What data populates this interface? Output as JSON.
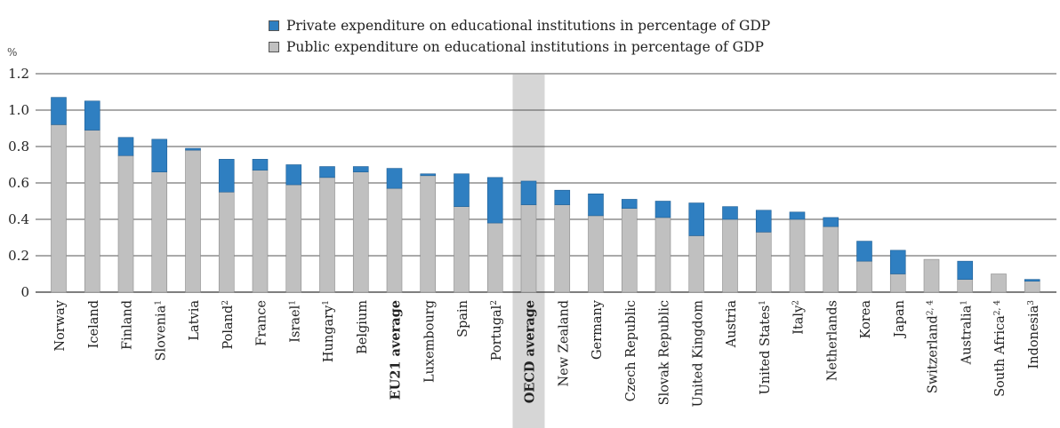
{
  "legend": {
    "private_label": "Private expenditure on educational institutions in percentage of GDP",
    "public_label": "Public expenditure on educational institutions in percentage of GDP"
  },
  "chart_data": {
    "type": "bar",
    "stacked": true,
    "ylabel": "%",
    "ylim": [
      0,
      1.2
    ],
    "yticks": [
      "0",
      "0.2",
      "0.4",
      "0.6",
      "0.8",
      "1.0",
      "1.2"
    ],
    "grid": true,
    "legend_position": "top",
    "colors": {
      "private": "#2f7fc1",
      "public": "#c0c0c0",
      "highlight": "#d6d6d6"
    },
    "categories": [
      {
        "name": "Norway",
        "sup": ""
      },
      {
        "name": "Iceland",
        "sup": ""
      },
      {
        "name": "Finland",
        "sup": ""
      },
      {
        "name": "Slovenia",
        "sup": "1"
      },
      {
        "name": "Latvia",
        "sup": ""
      },
      {
        "name": "Poland",
        "sup": "2"
      },
      {
        "name": "France",
        "sup": ""
      },
      {
        "name": "Israel",
        "sup": "1"
      },
      {
        "name": "Hungary",
        "sup": "1"
      },
      {
        "name": "Belgium",
        "sup": ""
      },
      {
        "name": "EU21 average",
        "sup": "",
        "bold": true
      },
      {
        "name": "Luxembourg",
        "sup": ""
      },
      {
        "name": "Spain",
        "sup": ""
      },
      {
        "name": "Portugal",
        "sup": "2"
      },
      {
        "name": "OECD average",
        "sup": "",
        "bold": true,
        "highlight": true
      },
      {
        "name": "New Zealand",
        "sup": ""
      },
      {
        "name": "Germany",
        "sup": ""
      },
      {
        "name": "Czech Republic",
        "sup": ""
      },
      {
        "name": "Slovak Republic",
        "sup": ""
      },
      {
        "name": "United Kingdom",
        "sup": ""
      },
      {
        "name": "Austria",
        "sup": ""
      },
      {
        "name": "United States",
        "sup": "1"
      },
      {
        "name": "Italy",
        "sup": "2"
      },
      {
        "name": "Netherlands",
        "sup": ""
      },
      {
        "name": "Korea",
        "sup": ""
      },
      {
        "name": "Japan",
        "sup": ""
      },
      {
        "name": "Switzerland",
        "sup": "2, 4"
      },
      {
        "name": "Australia",
        "sup": "1"
      },
      {
        "name": "South Africa",
        "sup": "2, 4"
      },
      {
        "name": "Indonesia",
        "sup": "3"
      }
    ],
    "series": [
      {
        "name": "Public expenditure on educational institutions in percentage of GDP",
        "values": [
          0.92,
          0.89,
          0.75,
          0.66,
          0.78,
          0.55,
          0.67,
          0.59,
          0.63,
          0.66,
          0.57,
          0.64,
          0.47,
          0.38,
          0.48,
          0.48,
          0.42,
          0.46,
          0.41,
          0.31,
          0.4,
          0.33,
          0.4,
          0.36,
          0.17,
          0.1,
          0.18,
          0.07,
          0.1,
          0.06
        ]
      },
      {
        "name": "Private expenditure on educational institutions in percentage of GDP",
        "values": [
          0.15,
          0.16,
          0.1,
          0.18,
          0.01,
          0.18,
          0.06,
          0.11,
          0.06,
          0.03,
          0.11,
          0.01,
          0.18,
          0.25,
          0.13,
          0.08,
          0.12,
          0.05,
          0.09,
          0.18,
          0.07,
          0.12,
          0.04,
          0.05,
          0.11,
          0.13,
          0.0,
          0.1,
          0.0,
          0.01
        ]
      }
    ]
  }
}
